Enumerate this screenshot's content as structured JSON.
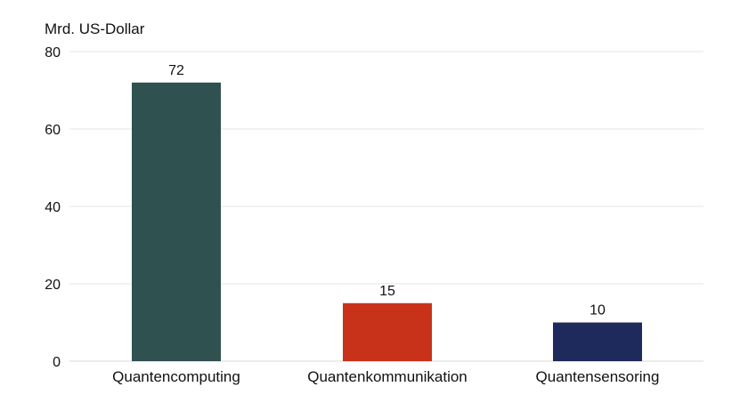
{
  "chart_data": {
    "type": "bar",
    "ylabel": "Mrd. US-Dollar",
    "categories": [
      "Quantencomputing",
      "Quantenkommunikation",
      "Quantensensoring"
    ],
    "values": [
      72,
      15,
      10
    ],
    "value_labels": [
      "72",
      "15",
      "10"
    ],
    "colors": [
      "#2f5150",
      "#c9321a",
      "#1f2a5c"
    ],
    "ylim": [
      0,
      80
    ],
    "yticks": [
      0,
      20,
      40,
      60,
      80
    ],
    "grid": true,
    "legend": "none"
  }
}
